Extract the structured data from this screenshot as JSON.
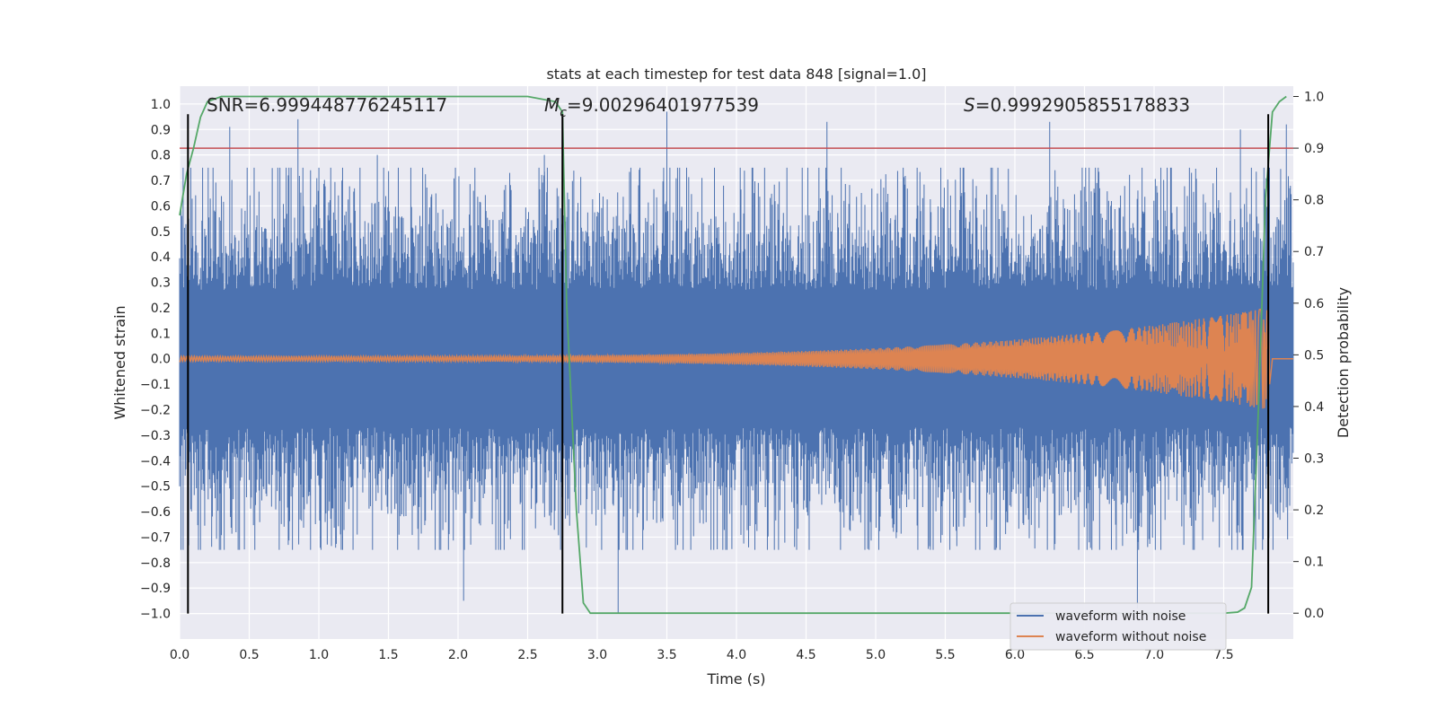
{
  "chart_data": {
    "type": "line",
    "title": "stats at each timestep for test data 848 [signal=1.0]",
    "xlabel": "Time (s)",
    "ylabel_left": "Whitened strain",
    "ylabel_right": "Detection probability",
    "xlim": [
      0.0,
      8.0
    ],
    "ylim_left": [
      -1.1,
      1.07
    ],
    "ylim_right": [
      -0.05,
      1.02
    ],
    "xticks": [
      0.0,
      0.5,
      1.0,
      1.5,
      2.0,
      2.5,
      3.0,
      3.5,
      4.0,
      4.5,
      5.0,
      5.5,
      6.0,
      6.5,
      7.0,
      7.5
    ],
    "xtick_labels": [
      "0.0",
      "0.5",
      "1.0",
      "1.5",
      "2.0",
      "2.5",
      "3.0",
      "3.5",
      "4.0",
      "4.5",
      "5.0",
      "5.5",
      "6.0",
      "6.5",
      "7.0",
      "7.5"
    ],
    "yticks_left": [
      -1.0,
      -0.9,
      -0.8,
      -0.7,
      -0.6,
      -0.5,
      -0.4,
      -0.3,
      -0.2,
      -0.1,
      0.0,
      0.1,
      0.2,
      0.3,
      0.4,
      0.5,
      0.6,
      0.7,
      0.8,
      0.9,
      1.0
    ],
    "ytick_labels_left": [
      "−1.0",
      "−0.9",
      "−0.8",
      "−0.7",
      "−0.6",
      "−0.5",
      "−0.4",
      "−0.3",
      "−0.2",
      "−0.1",
      "0.0",
      "0.1",
      "0.2",
      "0.3",
      "0.4",
      "0.5",
      "0.6",
      "0.7",
      "0.8",
      "0.9",
      "1.0"
    ],
    "yticks_right": [
      0.0,
      0.1,
      0.2,
      0.3,
      0.4,
      0.5,
      0.6,
      0.7,
      0.8,
      0.9,
      1.0
    ],
    "ytick_labels_right": [
      "0.0",
      "0.1",
      "0.2",
      "0.3",
      "0.4",
      "0.5",
      "0.6",
      "0.7",
      "0.8",
      "0.9",
      "1.0"
    ],
    "annotations": {
      "snr": "SNR=6.999448776245117",
      "mc_symbol": "M",
      "mc_sub": "c",
      "mc_value": "=9.00296401977539",
      "s_symbol": "S",
      "s_value": "=0.9992905855178833"
    },
    "threshold_right": 0.9,
    "vlines_x": [
      0.06,
      2.75,
      7.82
    ],
    "vline_range_left": [
      -1.0,
      0.96
    ],
    "series": [
      {
        "name": "waveform with noise",
        "color": "#4c72b0",
        "amplitude_core": 0.3,
        "peaks_high": [
          [
            0.36,
            0.91
          ],
          [
            0.85,
            0.94
          ],
          [
            1.42,
            0.8
          ],
          [
            2.04,
            -0.95
          ],
          [
            2.62,
            0.8
          ],
          [
            3.15,
            -1.0
          ],
          [
            3.5,
            0.97
          ],
          [
            4.65,
            0.93
          ],
          [
            6.25,
            0.93
          ],
          [
            6.88,
            -0.98
          ],
          [
            7.62,
            0.9
          ],
          [
            7.95,
            0.92
          ]
        ]
      },
      {
        "name": "waveform without noise",
        "color": "#dd8452",
        "start_amplitude": 0.01,
        "end_amplitude": 0.2,
        "end_time": 7.82
      },
      {
        "name": "detection probability",
        "color": "#55a868",
        "axis": "right",
        "x": [
          0.0,
          0.05,
          0.1,
          0.15,
          0.2,
          0.3,
          0.5,
          1.0,
          2.0,
          2.5,
          2.7,
          2.75,
          2.78,
          2.85,
          2.9,
          2.95,
          3.0,
          4.0,
          5.0,
          6.0,
          7.0,
          7.5,
          7.6,
          7.65,
          7.7,
          7.75,
          7.8,
          7.85,
          7.9,
          7.95
        ],
        "y": [
          0.77,
          0.85,
          0.9,
          0.96,
          0.99,
          1.0,
          1.0,
          1.0,
          1.0,
          1.0,
          0.99,
          0.97,
          0.6,
          0.2,
          0.02,
          0.0,
          0.0,
          0.0,
          0.0,
          0.0,
          0.0,
          0.0,
          0.002,
          0.01,
          0.05,
          0.4,
          0.8,
          0.97,
          0.99,
          1.0
        ]
      }
    ],
    "threshold_color": "#c44e52",
    "legend": {
      "placement": "lower-right",
      "entries": [
        {
          "label": "waveform with noise",
          "color": "#4c72b0"
        },
        {
          "label": "waveform without noise",
          "color": "#dd8452"
        }
      ]
    }
  }
}
